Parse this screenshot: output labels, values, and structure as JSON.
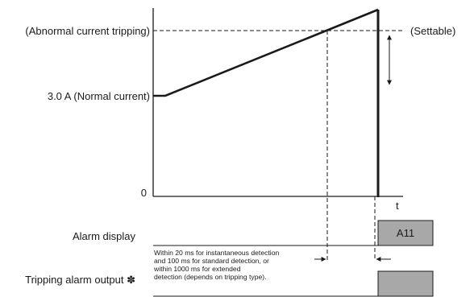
{
  "labels": {
    "abnormal": "(Abnormal current tripping)",
    "normal": "3.0 A (Normal current)",
    "settable": "(Settable)",
    "zero": "0",
    "t_axis": "t",
    "alarm_display": "Alarm display",
    "alarm_code": "A11",
    "tripping_output": "Tripping alarm output ✽"
  },
  "note": [
    "Within 20 ms for instantaneous detection",
    "and 100 ms for standard detection, or",
    "within 1000 ms for extended",
    "detection (depends on tripping type)."
  ],
  "colors": {
    "line": "#1a1a1a",
    "box_fill": "#a8a8a8"
  }
}
